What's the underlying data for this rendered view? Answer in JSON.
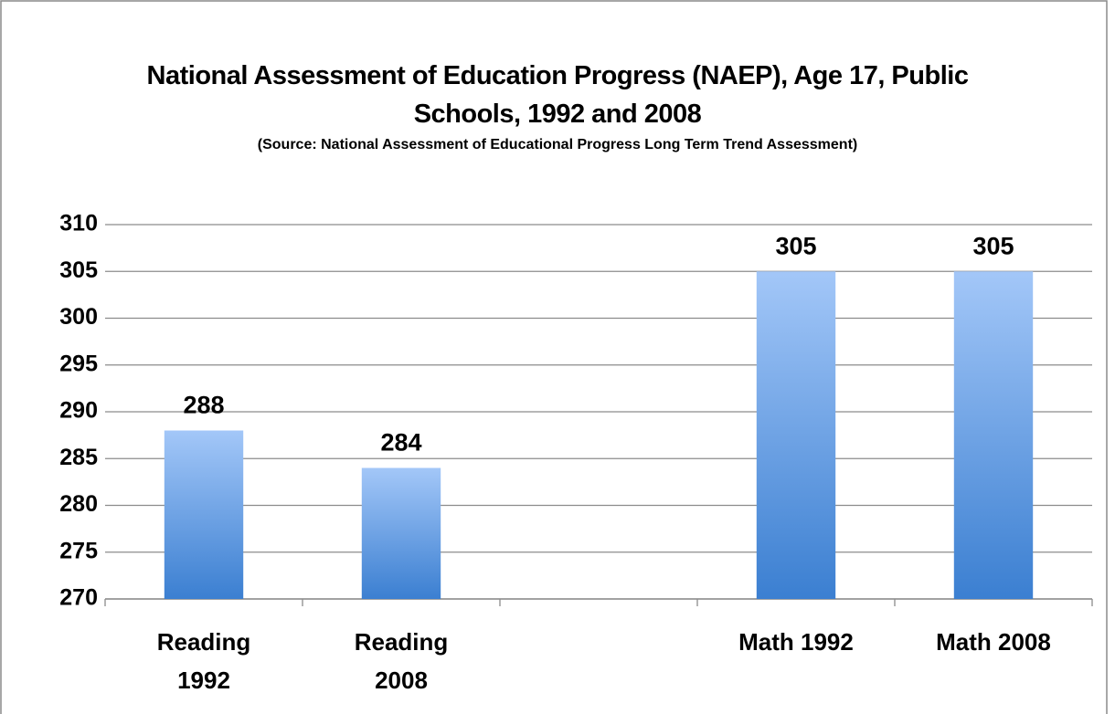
{
  "chart_data": {
    "type": "bar",
    "title": "National Assessment of Education Progress (NAEP), Age 17, Public Schools, 1992 and 2008",
    "subtitle": "(Source: National Assessment of Educational Progress Long Term Trend Assessment)",
    "categories": [
      "Reading 1992",
      "Reading 2008",
      null,
      "Math 1992",
      "Math 2008"
    ],
    "values": [
      288,
      284,
      null,
      305,
      305
    ],
    "color": "#4a8ad8",
    "ylim": [
      270,
      310
    ],
    "yticks": [
      270,
      275,
      280,
      285,
      290,
      295,
      300,
      305,
      310
    ],
    "grid": true
  }
}
